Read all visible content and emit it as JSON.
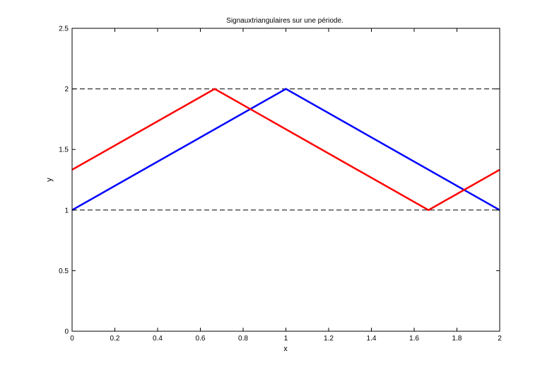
{
  "chart_data": {
    "type": "line",
    "title": "Signauxtriangulaires sur une période.",
    "xlabel": "x",
    "ylabel": "y",
    "xlim": [
      0,
      2
    ],
    "ylim": [
      0,
      2.5
    ],
    "xticks": [
      0,
      0.2,
      0.4,
      0.6,
      0.8,
      1,
      1.2,
      1.4,
      1.6,
      1.8,
      2
    ],
    "xtick_labels": [
      "0",
      "0.2",
      "0.4",
      "0.6",
      "0.8",
      "1",
      "1.2",
      "1.4",
      "1.6",
      "1.8",
      "2"
    ],
    "yticks": [
      0,
      0.5,
      1,
      1.5,
      2,
      2.5
    ],
    "ytick_labels": [
      "0",
      "0.5",
      "1",
      "1.5",
      "2",
      "2.5"
    ],
    "grid": false,
    "series": [
      {
        "color": "#0000ff",
        "x": [
          0,
          1,
          2
        ],
        "y": [
          1,
          2,
          1
        ]
      },
      {
        "color": "#ff0000",
        "x": [
          0,
          0.667,
          1.667,
          2
        ],
        "y": [
          1.333,
          2,
          1,
          1.333
        ]
      }
    ],
    "reference_lines": [
      {
        "y": 2,
        "style": "dashed",
        "color": "#000000"
      },
      {
        "y": 1,
        "style": "dashed",
        "color": "#000000"
      }
    ]
  }
}
